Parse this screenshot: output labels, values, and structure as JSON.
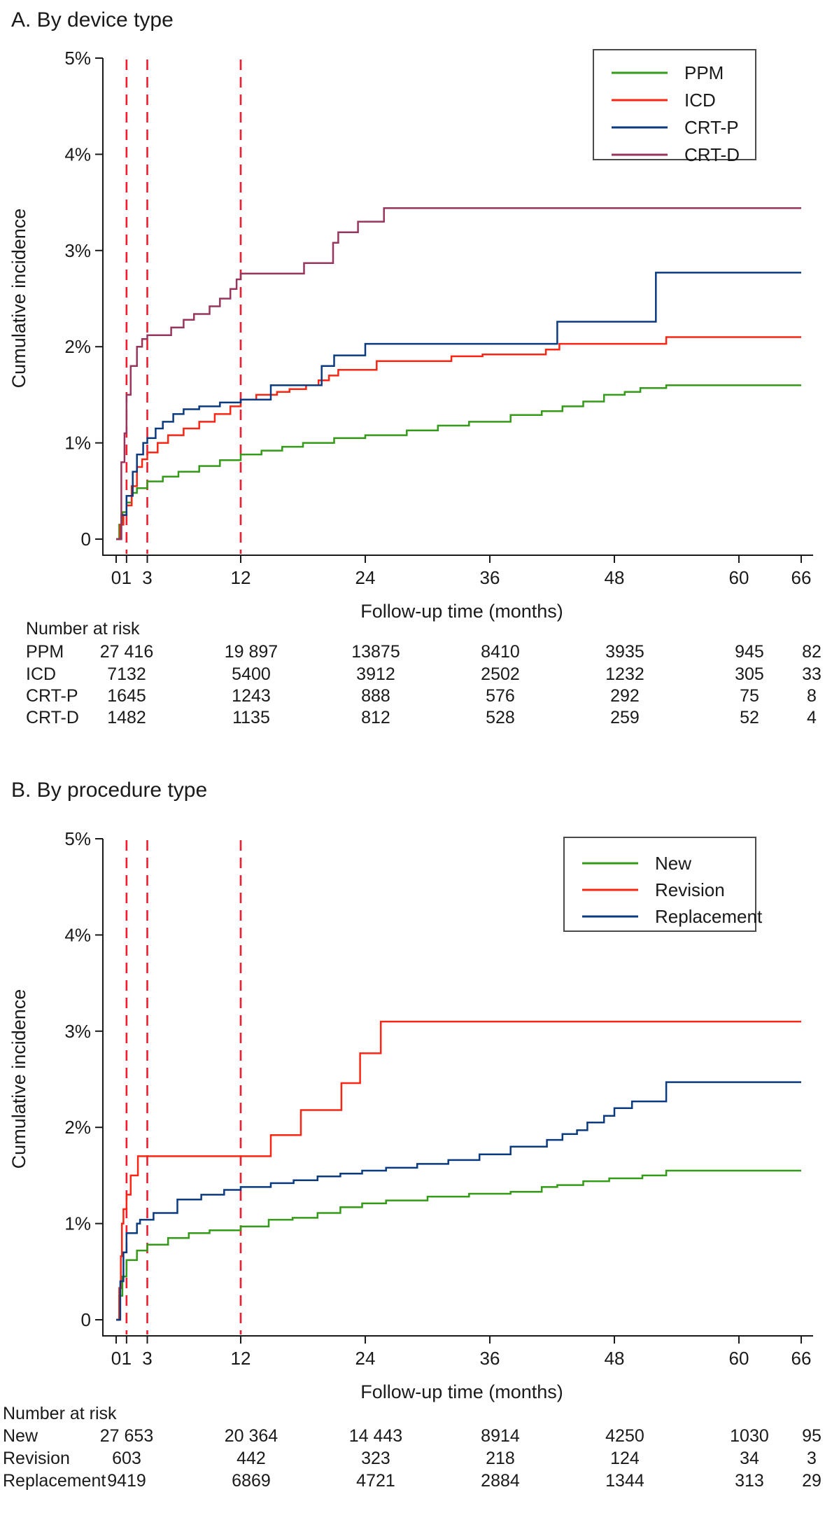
{
  "figure": {
    "background": "#ffffff",
    "text_color": "#1a1a1a",
    "refline_color": "#f21c2e"
  },
  "panels": [
    {
      "id": "A",
      "title": "A. By device type",
      "x_label": "Follow-up time (months)",
      "y_label": "Cumulative incidence",
      "number_at_risk_label": "Number at risk",
      "legend": [
        {
          "label": "PPM",
          "color": "#339b17"
        },
        {
          "label": "ICD",
          "color": "#fb2513"
        },
        {
          "label": "CRT-P",
          "color": "#0a3a80"
        },
        {
          "label": "CRT-D",
          "color": "#98355f"
        }
      ],
      "at_risk": {
        "columns_months": [
          0,
          12,
          24,
          36,
          48,
          60,
          66
        ],
        "rows": [
          {
            "label": "PPM",
            "values": [
              "27 416",
              "19 897",
              "13875",
              "8410",
              "3935",
              "945",
              "82"
            ]
          },
          {
            "label": "ICD",
            "values": [
              "7132",
              "5400",
              "3912",
              "2502",
              "1232",
              "305",
              "33"
            ]
          },
          {
            "label": "CRT-P",
            "values": [
              "1645",
              "1243",
              "888",
              "576",
              "292",
              "75",
              "8"
            ]
          },
          {
            "label": "CRT-D",
            "values": [
              "1482",
              "1135",
              "812",
              "528",
              "259",
              "52",
              "4"
            ]
          }
        ]
      },
      "chart_data": {
        "type": "line",
        "step": true,
        "title": "A. By device type",
        "xlabel": "Follow-up time (months)",
        "ylabel": "Cumulative incidence",
        "xlim": [
          0,
          66
        ],
        "ylim_percent": [
          0,
          5
        ],
        "x_ticks": [
          0,
          1,
          3,
          12,
          24,
          36,
          48,
          60,
          66
        ],
        "y_ticks_percent": [
          0,
          1,
          2,
          3,
          4,
          5
        ],
        "y_tick_labels": [
          "0",
          "1%",
          "2%",
          "3%",
          "4%",
          "5%"
        ],
        "reference_lines_months": [
          1,
          3,
          12
        ],
        "legend_position": "top-right",
        "grid": false,
        "series": [
          {
            "name": "PPM",
            "color": "#339b17",
            "points": [
              [
                0,
                0
              ],
              [
                0.3,
                0.15
              ],
              [
                0.6,
                0.28
              ],
              [
                1,
                0.38
              ],
              [
                1.5,
                0.48
              ],
              [
                2,
                0.53
              ],
              [
                3,
                0.6
              ],
              [
                4.5,
                0.65
              ],
              [
                6,
                0.7
              ],
              [
                8,
                0.76
              ],
              [
                10,
                0.82
              ],
              [
                12,
                0.88
              ],
              [
                14,
                0.92
              ],
              [
                16,
                0.96
              ],
              [
                18,
                1.0
              ],
              [
                21,
                1.05
              ],
              [
                24,
                1.08
              ],
              [
                28,
                1.13
              ],
              [
                31,
                1.18
              ],
              [
                34,
                1.22
              ],
              [
                38,
                1.29
              ],
              [
                41,
                1.33
              ],
              [
                43,
                1.38
              ],
              [
                45,
                1.43
              ],
              [
                47,
                1.5
              ],
              [
                49,
                1.53
              ],
              [
                50.5,
                1.57
              ],
              [
                53,
                1.6
              ],
              [
                66,
                1.6
              ]
            ]
          },
          {
            "name": "ICD",
            "color": "#fb2513",
            "points": [
              [
                0,
                0
              ],
              [
                0.4,
                0.15
              ],
              [
                0.7,
                0.25
              ],
              [
                1,
                0.35
              ],
              [
                1.5,
                0.55
              ],
              [
                2,
                0.75
              ],
              [
                2.5,
                0.83
              ],
              [
                3,
                0.9
              ],
              [
                4,
                1.0
              ],
              [
                5,
                1.08
              ],
              [
                6.5,
                1.15
              ],
              [
                8,
                1.22
              ],
              [
                9.5,
                1.3
              ],
              [
                11,
                1.38
              ],
              [
                12,
                1.45
              ],
              [
                13.5,
                1.5
              ],
              [
                15.5,
                1.53
              ],
              [
                16.7,
                1.56
              ],
              [
                18.3,
                1.6
              ],
              [
                19.5,
                1.65
              ],
              [
                20.5,
                1.7
              ],
              [
                21.4,
                1.76
              ],
              [
                25.1,
                1.85
              ],
              [
                32.3,
                1.9
              ],
              [
                35.3,
                1.92
              ],
              [
                41.4,
                1.97
              ],
              [
                42.7,
                2.03
              ],
              [
                53,
                2.1
              ],
              [
                66,
                2.1
              ]
            ]
          },
          {
            "name": "CRT-P",
            "color": "#0a3a80",
            "points": [
              [
                0,
                0
              ],
              [
                0.5,
                0.25
              ],
              [
                1,
                0.45
              ],
              [
                1.6,
                0.7
              ],
              [
                2,
                0.88
              ],
              [
                2.6,
                1.0
              ],
              [
                3,
                1.05
              ],
              [
                3.8,
                1.15
              ],
              [
                4.5,
                1.22
              ],
              [
                5.5,
                1.3
              ],
              [
                6.5,
                1.35
              ],
              [
                8,
                1.38
              ],
              [
                10,
                1.42
              ],
              [
                12,
                1.45
              ],
              [
                14.9,
                1.6
              ],
              [
                19.8,
                1.8
              ],
              [
                21,
                1.91
              ],
              [
                24,
                2.03
              ],
              [
                42.5,
                2.26
              ],
              [
                52,
                2.77
              ],
              [
                66,
                2.77
              ]
            ]
          },
          {
            "name": "CRT-D",
            "color": "#98355f",
            "points": [
              [
                0,
                0
              ],
              [
                0.5,
                0.8
              ],
              [
                0.8,
                1.1
              ],
              [
                1,
                1.5
              ],
              [
                1.4,
                1.8
              ],
              [
                2,
                2.0
              ],
              [
                2.5,
                2.08
              ],
              [
                3,
                2.12
              ],
              [
                5.3,
                2.2
              ],
              [
                6.5,
                2.28
              ],
              [
                7.5,
                2.34
              ],
              [
                9,
                2.42
              ],
              [
                10,
                2.5
              ],
              [
                11,
                2.6
              ],
              [
                11.6,
                2.7
              ],
              [
                12,
                2.76
              ],
              [
                18.1,
                2.87
              ],
              [
                20.9,
                3.08
              ],
              [
                21.4,
                3.19
              ],
              [
                23.3,
                3.3
              ],
              [
                25.8,
                3.44
              ],
              [
                66,
                3.44
              ]
            ]
          }
        ]
      }
    },
    {
      "id": "B",
      "title": "B. By procedure type",
      "x_label": "Follow-up time (months)",
      "y_label": "Cumulative incidence",
      "number_at_risk_label": "Number at risk",
      "legend": [
        {
          "label": "New",
          "color": "#339b17"
        },
        {
          "label": "Revision",
          "color": "#fb2513"
        },
        {
          "label": "Replacement",
          "color": "#0a3a80"
        }
      ],
      "at_risk": {
        "columns_months": [
          0,
          12,
          24,
          36,
          48,
          60,
          66
        ],
        "rows": [
          {
            "label": "New",
            "values": [
              "27 653",
              "20 364",
              "14 443",
              "8914",
              "4250",
              "1030",
              "95"
            ]
          },
          {
            "label": "Revision",
            "values": [
              "603",
              "442",
              "323",
              "218",
              "124",
              "34",
              "3"
            ]
          },
          {
            "label": "Replacement",
            "values": [
              "9419",
              "6869",
              "4721",
              "2884",
              "1344",
              "313",
              "29"
            ]
          }
        ]
      },
      "chart_data": {
        "type": "line",
        "step": true,
        "title": "B. By procedure type",
        "xlabel": "Follow-up time (months)",
        "ylabel": "Cumulative incidence",
        "xlim": [
          0,
          66
        ],
        "ylim_percent": [
          0,
          5
        ],
        "x_ticks": [
          0,
          1,
          3,
          12,
          24,
          36,
          48,
          60,
          66
        ],
        "y_ticks_percent": [
          0,
          1,
          2,
          3,
          4,
          5
        ],
        "y_tick_labels": [
          "0",
          "1%",
          "2%",
          "3%",
          "4%",
          "5%"
        ],
        "reference_lines_months": [
          1,
          3,
          12
        ],
        "legend_position": "top-right",
        "grid": false,
        "series": [
          {
            "name": "New",
            "color": "#339b17",
            "points": [
              [
                0,
                0
              ],
              [
                0.3,
                0.25
              ],
              [
                0.6,
                0.45
              ],
              [
                1,
                0.62
              ],
              [
                2,
                0.72
              ],
              [
                3,
                0.78
              ],
              [
                5,
                0.85
              ],
              [
                7,
                0.9
              ],
              [
                9,
                0.93
              ],
              [
                12,
                0.97
              ],
              [
                14.7,
                1.04
              ],
              [
                17,
                1.06
              ],
              [
                19.4,
                1.11
              ],
              [
                21.6,
                1.17
              ],
              [
                23.7,
                1.21
              ],
              [
                26,
                1.24
              ],
              [
                30,
                1.28
              ],
              [
                34,
                1.31
              ],
              [
                38,
                1.33
              ],
              [
                41,
                1.38
              ],
              [
                42.5,
                1.4
              ],
              [
                45,
                1.44
              ],
              [
                47.5,
                1.47
              ],
              [
                50.7,
                1.5
              ],
              [
                53,
                1.55
              ],
              [
                66,
                1.55
              ]
            ]
          },
          {
            "name": "Revision",
            "color": "#fb2513",
            "points": [
              [
                0,
                0
              ],
              [
                0.3,
                0.33
              ],
              [
                0.45,
                0.66
              ],
              [
                0.55,
                1.0
              ],
              [
                0.7,
                1.15
              ],
              [
                1.0,
                1.3
              ],
              [
                1.4,
                1.5
              ],
              [
                2.1,
                1.7
              ],
              [
                14.9,
                1.92
              ],
              [
                17.8,
                2.18
              ],
              [
                21.7,
                2.46
              ],
              [
                23.5,
                2.77
              ],
              [
                25.5,
                3.1
              ],
              [
                66,
                3.1
              ]
            ]
          },
          {
            "name": "Replacement",
            "color": "#0a3a80",
            "points": [
              [
                0,
                0
              ],
              [
                0.4,
                0.4
              ],
              [
                0.7,
                0.7
              ],
              [
                1,
                0.9
              ],
              [
                2,
                1.0
              ],
              [
                2.3,
                1.04
              ],
              [
                3.6,
                1.11
              ],
              [
                5.9,
                1.25
              ],
              [
                8.2,
                1.3
              ],
              [
                10.4,
                1.35
              ],
              [
                12,
                1.38
              ],
              [
                14.9,
                1.42
              ],
              [
                17.1,
                1.45
              ],
              [
                19.4,
                1.49
              ],
              [
                21.6,
                1.52
              ],
              [
                23.7,
                1.55
              ],
              [
                26,
                1.58
              ],
              [
                29,
                1.62
              ],
              [
                32,
                1.66
              ],
              [
                35,
                1.72
              ],
              [
                38,
                1.8
              ],
              [
                41.5,
                1.87
              ],
              [
                43,
                1.93
              ],
              [
                44.4,
                1.97
              ],
              [
                45.4,
                2.05
              ],
              [
                47,
                2.12
              ],
              [
                48,
                2.2
              ],
              [
                49.7,
                2.27
              ],
              [
                53,
                2.47
              ],
              [
                66,
                2.47
              ]
            ]
          }
        ]
      }
    }
  ]
}
